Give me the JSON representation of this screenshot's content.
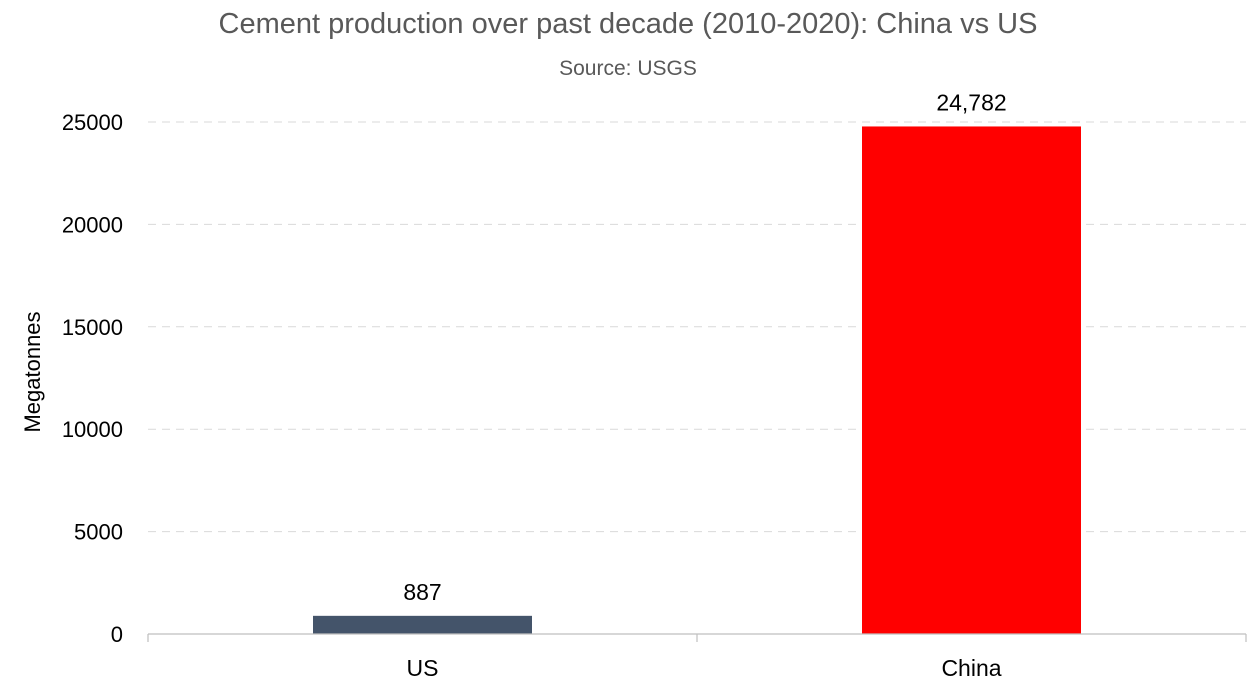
{
  "chart_data": {
    "type": "bar",
    "title": "Cement production over past decade (2010-2020): China vs US",
    "subtitle": "Source: USGS",
    "xlabel": "",
    "ylabel": "Megatonnes",
    "categories": [
      "US",
      "China"
    ],
    "values": [
      887,
      24782
    ],
    "data_labels": [
      "887",
      "24,782"
    ],
    "bar_colors": [
      "#44546a",
      "#ff0000"
    ],
    "ylim": [
      0,
      25000
    ],
    "yticks": [
      0,
      5000,
      10000,
      15000,
      20000,
      25000
    ],
    "ytick_labels": [
      "0",
      "5000",
      "10000",
      "15000",
      "20000",
      "25000"
    ],
    "grid": true,
    "legend": "none"
  }
}
